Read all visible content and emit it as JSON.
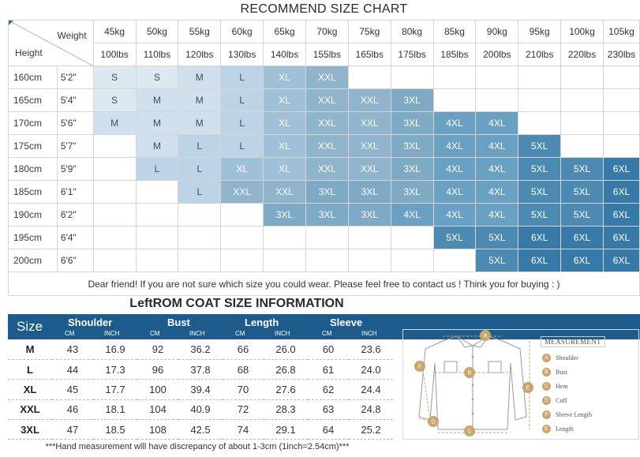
{
  "chart_title": "RECOMMEND SIZE CHART",
  "corner": {
    "weight_label": "Weight",
    "height_label": "Height"
  },
  "weights_kg": [
    "45kg",
    "50kg",
    "55kg",
    "60kg",
    "65kg",
    "70kg",
    "75kg",
    "80kg",
    "85kg",
    "90kg",
    "95kg",
    "100kg",
    "105kg"
  ],
  "weights_lbs": [
    "100lbs",
    "110lbs",
    "120lbs",
    "130lbs",
    "140lbs",
    "155lbs",
    "165lbs",
    "175lbs",
    "185lbs",
    "200lbs",
    "210lbs",
    "220lbs",
    "230lbs"
  ],
  "rows": [
    {
      "cm": "160cm",
      "inch": "5'2\"",
      "sizes": [
        "S",
        "S",
        "M",
        "L",
        "XL",
        "XXL",
        "",
        "",
        "",
        "",
        "",
        "",
        ""
      ]
    },
    {
      "cm": "165cm",
      "inch": "5'4\"",
      "sizes": [
        "S",
        "M",
        "M",
        "L",
        "XL",
        "XXL",
        "XXL",
        "3XL",
        "",
        "",
        "",
        "",
        ""
      ]
    },
    {
      "cm": "170cm",
      "inch": "5'6\"",
      "sizes": [
        "M",
        "M",
        "M",
        "L",
        "XL",
        "XXL",
        "XXL",
        "3XL",
        "4XL",
        "4XL",
        "",
        "",
        ""
      ]
    },
    {
      "cm": "175cm",
      "inch": "5'7\"",
      "sizes": [
        "",
        "M",
        "L",
        "L",
        "XL",
        "XXL",
        "XXL",
        "3XL",
        "4XL",
        "4XL",
        "5XL",
        "",
        ""
      ]
    },
    {
      "cm": "180cm",
      "inch": "5'9\"",
      "sizes": [
        "",
        "L",
        "L",
        "XL",
        "XL",
        "XXL",
        "XXL",
        "3XL",
        "4XL",
        "4XL",
        "5XL",
        "5XL",
        "6XL"
      ]
    },
    {
      "cm": "185cm",
      "inch": "6'1\"",
      "sizes": [
        "",
        "",
        "L",
        "XXL",
        "XXL",
        "3XL",
        "3XL",
        "3XL",
        "4XL",
        "4XL",
        "5XL",
        "5XL",
        "6XL"
      ]
    },
    {
      "cm": "190cm",
      "inch": "6'2\"",
      "sizes": [
        "",
        "",
        "",
        "",
        "3XL",
        "3XL",
        "3XL",
        "4XL",
        "4XL",
        "4XL",
        "5XL",
        "5XL",
        "6XL"
      ]
    },
    {
      "cm": "195cm",
      "inch": "6'4\"",
      "sizes": [
        "",
        "",
        "",
        "",
        "",
        "",
        "",
        "",
        "5XL",
        "5XL",
        "6XL",
        "6XL",
        "6XL"
      ]
    },
    {
      "cm": "200cm",
      "inch": "6'6\"",
      "sizes": [
        "",
        "",
        "",
        "",
        "",
        "",
        "",
        "",
        "",
        "5XL",
        "6XL",
        "6XL",
        "6XL"
      ]
    }
  ],
  "size_colors": {
    "S": "#dde9f1",
    "M": "#cfe0ec",
    "L": "#bcd4e5",
    "XL": "#9fc0d6",
    "XXL": "#8fb4cc",
    "3XL": "#7eaac6",
    "4XL": "#6aa0c1",
    "5XL": "#4c8ab2",
    "6XL": "#3779a7"
  },
  "note": "Dear friend! If you are not sure which size you could wear. Please feel free to contact us ! Think you for buying  : )",
  "coat_title": "LeftROM COAT SIZE INFORMATION",
  "coat_header": {
    "size": "Size",
    "groups": [
      "Shoulder",
      "Bust",
      "Length",
      "Sleeve"
    ],
    "unit_cm": "CM",
    "unit_inch": "INCH"
  },
  "coat_rows": [
    {
      "size": "M",
      "values": [
        "43",
        "16.9",
        "92",
        "36.2",
        "66",
        "26.0",
        "60",
        "23.6"
      ]
    },
    {
      "size": "L",
      "values": [
        "44",
        "17.3",
        "96",
        "37.8",
        "68",
        "26.8",
        "61",
        "24.0"
      ]
    },
    {
      "size": "XL",
      "values": [
        "45",
        "17.7",
        "100",
        "39.4",
        "70",
        "27.6",
        "62",
        "24.4"
      ]
    },
    {
      "size": "XXL",
      "values": [
        "46",
        "18.1",
        "104",
        "40.9",
        "72",
        "28.3",
        "63",
        "24.8"
      ]
    },
    {
      "size": "3XL",
      "values": [
        "47",
        "18.5",
        "108",
        "42.5",
        "74",
        "29.1",
        "64",
        "25.2"
      ]
    }
  ],
  "footnote": "***Hand measurement will have discrepancy of about 1-3cm (1inch=2.54cm)***",
  "measurement": {
    "title": "MEASUREMENT",
    "items": [
      {
        "letter": "A",
        "label": "Shoulder"
      },
      {
        "letter": "B",
        "label": "Bust"
      },
      {
        "letter": "C",
        "label": "Hem"
      },
      {
        "letter": "D",
        "label": "Cuff"
      },
      {
        "letter": "F",
        "label": "Sleeve Length"
      },
      {
        "letter": "E",
        "label": "Length"
      }
    ]
  },
  "accent_color": "#1c5b8b",
  "badge_color": "#c9a66b"
}
